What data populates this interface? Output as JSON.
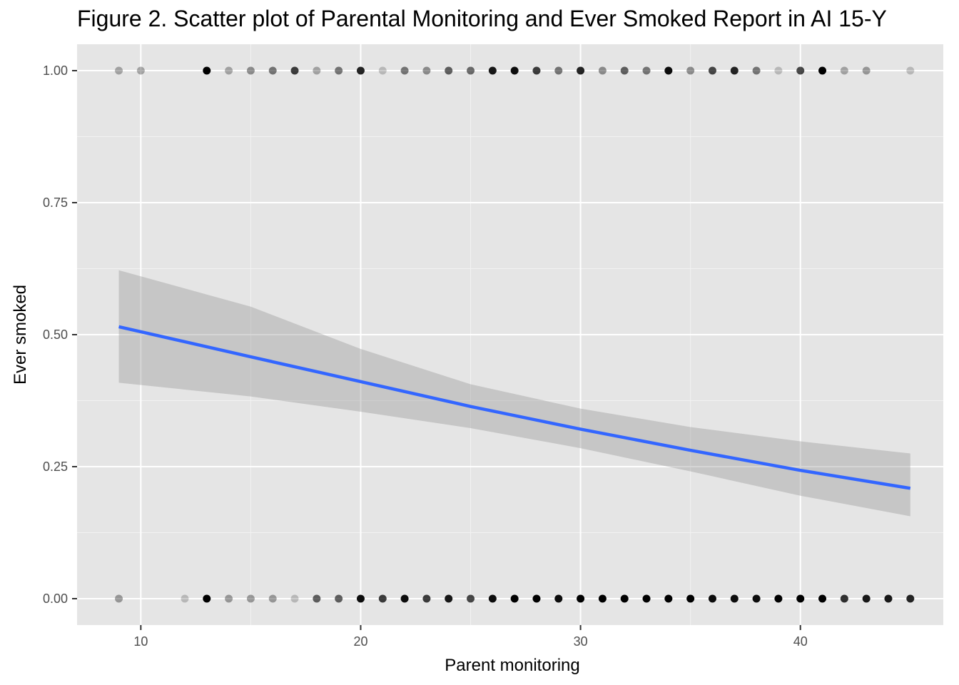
{
  "chart_data": {
    "type": "scatter",
    "title": "Figure 2. Scatter plot of Parental Monitoring and Ever Smoked Report in AI 15-Y",
    "xlabel": "Parent monitoring",
    "ylabel": "Ever smoked",
    "xlim": [
      7.1,
      46.5
    ],
    "ylim": [
      -0.05,
      1.05
    ],
    "x_ticks": [
      10,
      20,
      30,
      40
    ],
    "x_tick_labels": [
      "10",
      "20",
      "30",
      "40"
    ],
    "y_ticks": [
      0,
      0.25,
      0.5,
      0.75,
      1
    ],
    "y_tick_labels": [
      "0.00",
      "0.25",
      "0.50",
      "0.75",
      "1.00"
    ],
    "grid": true,
    "background": "#e5e5e5",
    "point_color": "#000000",
    "points_y1": [
      {
        "x": 9,
        "alpha": 0.3
      },
      {
        "x": 10,
        "alpha": 0.3
      },
      {
        "x": 13,
        "alpha": 1.0
      },
      {
        "x": 14,
        "alpha": 0.3
      },
      {
        "x": 15,
        "alpha": 0.4
      },
      {
        "x": 16,
        "alpha": 0.5
      },
      {
        "x": 17,
        "alpha": 0.75
      },
      {
        "x": 18,
        "alpha": 0.3
      },
      {
        "x": 19,
        "alpha": 0.5
      },
      {
        "x": 20,
        "alpha": 0.85
      },
      {
        "x": 21,
        "alpha": 0.2
      },
      {
        "x": 22,
        "alpha": 0.5
      },
      {
        "x": 23,
        "alpha": 0.4
      },
      {
        "x": 24,
        "alpha": 0.6
      },
      {
        "x": 25,
        "alpha": 0.55
      },
      {
        "x": 26,
        "alpha": 0.9
      },
      {
        "x": 27,
        "alpha": 0.95
      },
      {
        "x": 28,
        "alpha": 0.75
      },
      {
        "x": 29,
        "alpha": 0.5
      },
      {
        "x": 30,
        "alpha": 0.85
      },
      {
        "x": 31,
        "alpha": 0.4
      },
      {
        "x": 32,
        "alpha": 0.6
      },
      {
        "x": 33,
        "alpha": 0.5
      },
      {
        "x": 34,
        "alpha": 0.95
      },
      {
        "x": 35,
        "alpha": 0.4
      },
      {
        "x": 36,
        "alpha": 0.7
      },
      {
        "x": 37,
        "alpha": 0.85
      },
      {
        "x": 38,
        "alpha": 0.5
      },
      {
        "x": 39,
        "alpha": 0.2
      },
      {
        "x": 40,
        "alpha": 0.7
      },
      {
        "x": 41,
        "alpha": 1.0
      },
      {
        "x": 42,
        "alpha": 0.3
      },
      {
        "x": 43,
        "alpha": 0.35
      },
      {
        "x": 45,
        "alpha": 0.2
      }
    ],
    "points_y0": [
      {
        "x": 9,
        "alpha": 0.35
      },
      {
        "x": 12,
        "alpha": 0.2
      },
      {
        "x": 13,
        "alpha": 1.0
      },
      {
        "x": 14,
        "alpha": 0.35
      },
      {
        "x": 15,
        "alpha": 0.35
      },
      {
        "x": 16,
        "alpha": 0.35
      },
      {
        "x": 17,
        "alpha": 0.2
      },
      {
        "x": 18,
        "alpha": 0.6
      },
      {
        "x": 19,
        "alpha": 0.6
      },
      {
        "x": 20,
        "alpha": 0.95
      },
      {
        "x": 21,
        "alpha": 0.75
      },
      {
        "x": 22,
        "alpha": 0.95
      },
      {
        "x": 23,
        "alpha": 0.75
      },
      {
        "x": 24,
        "alpha": 0.9
      },
      {
        "x": 25,
        "alpha": 0.7
      },
      {
        "x": 26,
        "alpha": 0.95
      },
      {
        "x": 27,
        "alpha": 1.0
      },
      {
        "x": 28,
        "alpha": 1.0
      },
      {
        "x": 29,
        "alpha": 0.95
      },
      {
        "x": 30,
        "alpha": 1.0
      },
      {
        "x": 31,
        "alpha": 1.0
      },
      {
        "x": 32,
        "alpha": 1.0
      },
      {
        "x": 33,
        "alpha": 1.0
      },
      {
        "x": 34,
        "alpha": 1.0
      },
      {
        "x": 35,
        "alpha": 1.0
      },
      {
        "x": 36,
        "alpha": 0.95
      },
      {
        "x": 37,
        "alpha": 0.95
      },
      {
        "x": 38,
        "alpha": 0.95
      },
      {
        "x": 39,
        "alpha": 1.0
      },
      {
        "x": 40,
        "alpha": 1.0
      },
      {
        "x": 41,
        "alpha": 1.0
      },
      {
        "x": 42,
        "alpha": 0.8
      },
      {
        "x": 43,
        "alpha": 0.9
      },
      {
        "x": 44,
        "alpha": 0.9
      },
      {
        "x": 45,
        "alpha": 0.85
      }
    ],
    "fit": {
      "color": "#3366ff",
      "band_color": "#999999",
      "points": [
        {
          "x": 9,
          "y": 0.515,
          "lo": 0.409,
          "hi": 0.622
        },
        {
          "x": 15,
          "y": 0.458,
          "lo": 0.383,
          "hi": 0.553
        },
        {
          "x": 20,
          "y": 0.411,
          "lo": 0.354,
          "hi": 0.473
        },
        {
          "x": 25,
          "y": 0.364,
          "lo": 0.323,
          "hi": 0.406
        },
        {
          "x": 30,
          "y": 0.321,
          "lo": 0.285,
          "hi": 0.36
        },
        {
          "x": 35,
          "y": 0.281,
          "lo": 0.241,
          "hi": 0.325
        },
        {
          "x": 40,
          "y": 0.243,
          "lo": 0.195,
          "hi": 0.298
        },
        {
          "x": 45,
          "y": 0.209,
          "lo": 0.156,
          "hi": 0.275
        }
      ]
    }
  }
}
